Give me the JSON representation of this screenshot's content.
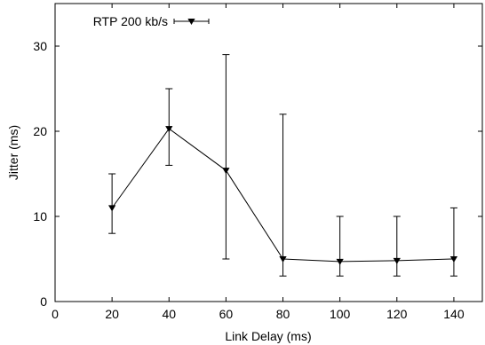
{
  "chart_data": {
    "type": "line",
    "xlabel": "Link Delay (ms)",
    "ylabel": "Jitter (ms)",
    "xlim": [
      0,
      150
    ],
    "ylim": [
      0,
      35
    ],
    "xticks": [
      0,
      20,
      40,
      60,
      80,
      100,
      120,
      140
    ],
    "yticks": [
      0,
      10,
      20,
      30
    ],
    "grid": false,
    "legend_position": "top-left",
    "series": [
      {
        "name": "RTP 200 kb/s",
        "marker": "triangle-down",
        "color": "#000000",
        "x": [
          20,
          40,
          60,
          80,
          100,
          120,
          140
        ],
        "y": [
          11,
          20.3,
          15.4,
          5,
          4.7,
          4.8,
          5
        ],
        "err_low": [
          8,
          16,
          5,
          3,
          3,
          3,
          3
        ],
        "err_high": [
          15,
          25,
          29,
          22,
          10,
          10,
          11
        ]
      }
    ]
  }
}
